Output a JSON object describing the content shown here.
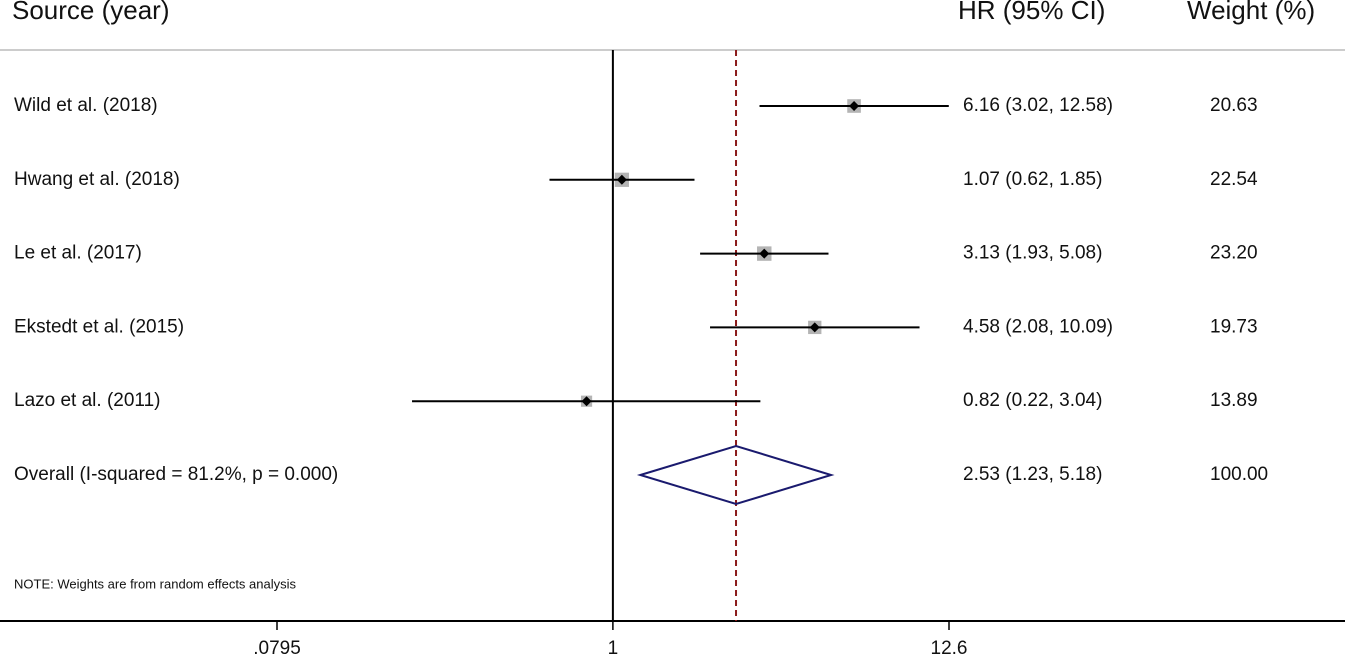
{
  "chart_data": {
    "type": "forest",
    "headers": {
      "source": "Source (year)",
      "effect": "HR (95% CI)",
      "weight": "Weight (%)"
    },
    "studies": [
      {
        "label": "Wild et al.  (2018)",
        "hr": 6.16,
        "lower": 3.02,
        "upper": 12.58,
        "hr_label": "6.16 (3.02, 12.58)",
        "weight": 20.63,
        "weight_label": "20.63"
      },
      {
        "label": "Hwang et al. (2018)",
        "hr": 1.07,
        "lower": 0.62,
        "upper": 1.85,
        "hr_label": "1.07 (0.62, 1.85)",
        "weight": 22.54,
        "weight_label": "22.54"
      },
      {
        "label": "Le et al. (2017)",
        "hr": 3.13,
        "lower": 1.93,
        "upper": 5.08,
        "hr_label": "3.13 (1.93, 5.08)",
        "weight": 23.2,
        "weight_label": "23.20"
      },
      {
        "label": "Ekstedt et al. (2015)",
        "hr": 4.58,
        "lower": 2.08,
        "upper": 10.09,
        "hr_label": "4.58 (2.08, 10.09)",
        "weight": 19.73,
        "weight_label": "19.73"
      },
      {
        "label": "Lazo et al. (2011)",
        "hr": 0.82,
        "lower": 0.22,
        "upper": 3.04,
        "hr_label": "0.82 (0.22, 3.04)",
        "weight": 13.89,
        "weight_label": "13.89"
      }
    ],
    "overall": {
      "label": "Overall  (I-squared = 81.2%, p = 0.000)",
      "hr": 2.53,
      "lower": 1.23,
      "upper": 5.18,
      "hr_label": "2.53 (1.23, 5.18)",
      "weight": 100,
      "weight_label": "100.00"
    },
    "note": "NOTE: Weights are from random effects analysis",
    "xscale": "log",
    "xlim": [
      0.0795,
      12.6
    ],
    "xticks": [
      {
        "value": 0.0795,
        "label": ".0795"
      },
      1,
      12.6
    ],
    "ref_line": 1,
    "square_color": "#b4b4b4",
    "diamond_color": "#1a1a6e",
    "overall_line_color": "#8b1a1a"
  }
}
